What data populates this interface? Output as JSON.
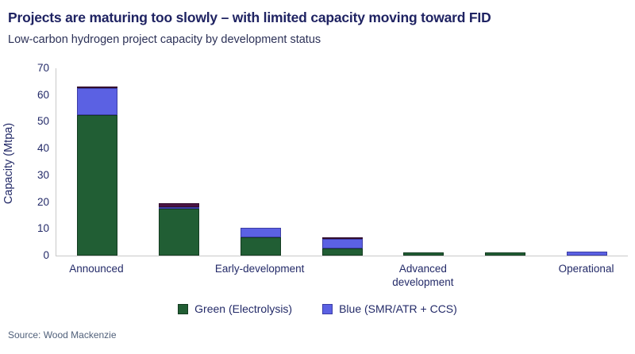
{
  "header": {
    "title": "Projects are maturing too slowly – with limited capacity moving toward FID",
    "subtitle": "Low-carbon hydrogen project capacity by development status"
  },
  "footer": {
    "source": "Source: Wood Mackenzie"
  },
  "colors": {
    "title_navy": "#1f2362",
    "axis_text_navy": "#232a68",
    "axis_line_gray": "#c9c9c9",
    "green": "#215e34",
    "green_border": "#143c21",
    "blue": "#5b61e3",
    "blue_border": "#3c3da5",
    "dark_plum": "#4b1343",
    "dark_plum_border": "#330d2e",
    "source_gray": "#50607a"
  },
  "chart_data": {
    "type": "bar",
    "stacked": true,
    "title": "Projects are maturing too slowly – with limited capacity moving toward FID",
    "subtitle": "Low-carbon hydrogen project capacity by development status",
    "xlabel": "",
    "ylabel": "Capacity (Mtpa)",
    "ylim": [
      0,
      70
    ],
    "yticks": [
      0,
      10,
      20,
      30,
      40,
      50,
      60,
      70
    ],
    "grid": false,
    "legend_position": "bottom",
    "categories": [
      "Announced",
      "",
      "Early-development",
      "",
      "Advanced development",
      "",
      "Operational"
    ],
    "visible_category_labels": [
      "Announced",
      "Early-development",
      "Advanced development",
      "Operational"
    ],
    "series": [
      {
        "name": "Green (Electrolysis)",
        "color": "#215e34",
        "border": "#143c21",
        "in_legend": true,
        "values": [
          52.5,
          17.5,
          6.8,
          2.6,
          1.2,
          1.2,
          0
        ]
      },
      {
        "name": "Blue (SMR/ATR + CCS)",
        "color": "#5b61e3",
        "border": "#3c3da5",
        "in_legend": true,
        "values": [
          10,
          0.6,
          3.7,
          3.6,
          0,
          0,
          1.4
        ]
      },
      {
        "name": "",
        "color": "#4b1343",
        "border": "#330d2e",
        "in_legend": false,
        "values": [
          0.5,
          1.4,
          0,
          0.3,
          0,
          0,
          0
        ]
      }
    ]
  }
}
